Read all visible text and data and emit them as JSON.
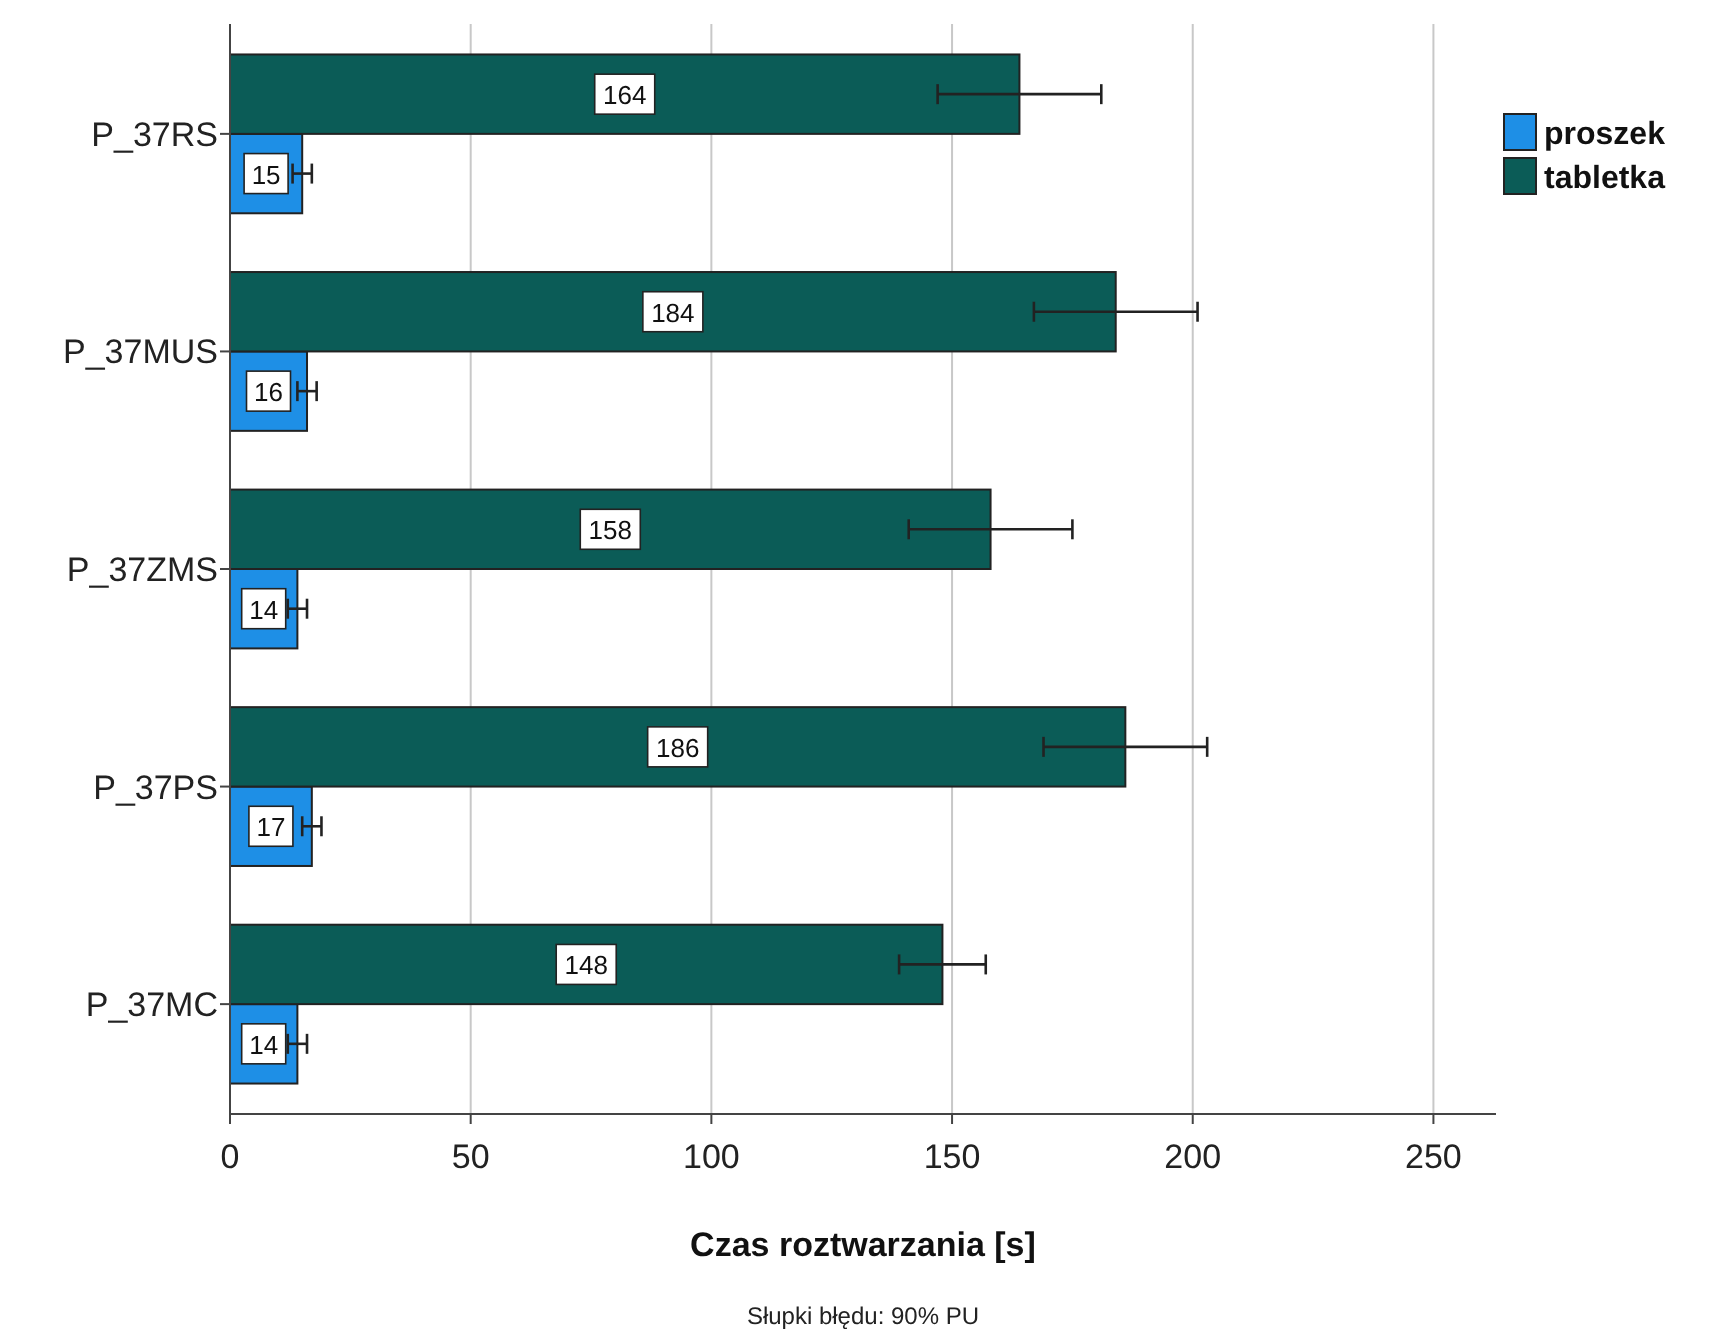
{
  "chart_data": {
    "type": "bar",
    "orientation": "horizontal",
    "xlabel": "Czas roztwarzania [s]",
    "categories": [
      "P_37RS",
      "P_37MUS",
      "P_37ZMS",
      "P_37PS",
      "P_37MC"
    ],
    "series": [
      {
        "name": "proszek",
        "color": "#1e8fe6",
        "values": [
          15,
          16,
          14,
          17,
          14
        ],
        "errors": [
          2,
          2,
          2,
          2,
          2
        ]
      },
      {
        "name": "tabletka",
        "color": "#0b5c57",
        "values": [
          164,
          184,
          158,
          186,
          148
        ],
        "errors": [
          17,
          17,
          17,
          17,
          9
        ]
      }
    ],
    "xlim": [
      0,
      263
    ],
    "xticks": [
      0,
      50,
      100,
      150,
      200,
      250
    ],
    "grid": "x",
    "legend": "right",
    "data_labels": true,
    "annotations": [
      "Słupki błędu: 90% PU"
    ]
  }
}
